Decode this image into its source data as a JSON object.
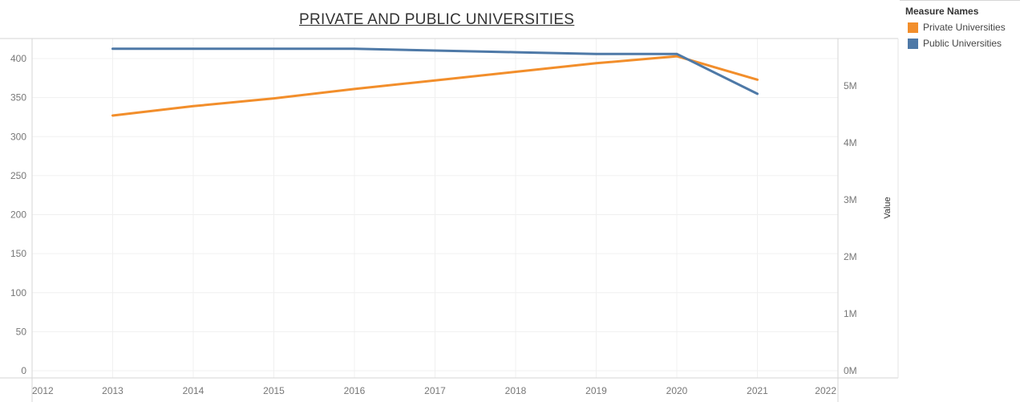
{
  "chart_data": {
    "type": "line",
    "title": "PRIVATE AND PUBLIC UNIVERSITIES",
    "xlabel": "",
    "ylabel_left": "",
    "ylabel_right": "Value",
    "x": [
      2013,
      2014,
      2015,
      2016,
      2017,
      2018,
      2019,
      2020,
      2021
    ],
    "x_ticks": [
      "2012",
      "2013",
      "2014",
      "2015",
      "2016",
      "2017",
      "2018",
      "2019",
      "2020",
      "2021",
      "2022"
    ],
    "y_left_ticks": [
      "0",
      "50",
      "100",
      "150",
      "200",
      "250",
      "300",
      "350",
      "400"
    ],
    "y_right_ticks": [
      "0M",
      "1M",
      "2M",
      "3M",
      "4M",
      "5M"
    ],
    "y_left_lim": [
      0,
      410
    ],
    "y_right_lim": [
      0,
      5900000
    ],
    "grid": true,
    "legend_position": "top-right",
    "legend_title": "Measure Names",
    "series": [
      {
        "name": "Private Universities",
        "color": "#f28e2b",
        "axis": "left",
        "values": [
          327,
          339,
          349,
          361,
          372,
          383,
          394,
          403,
          373
        ]
      },
      {
        "name": "Public Universities",
        "color": "#4e79a7",
        "axis": "right",
        "values": [
          5650000,
          5650000,
          5650000,
          5650000,
          5620000,
          5590000,
          5560000,
          5560000,
          4860000
        ]
      }
    ]
  }
}
